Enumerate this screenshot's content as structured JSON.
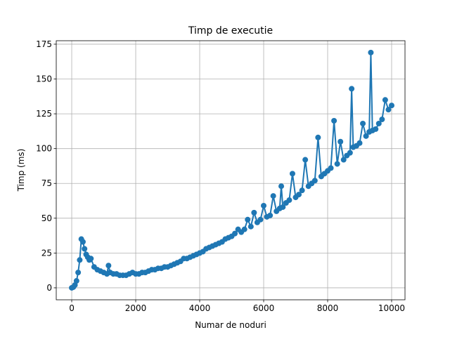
{
  "chart_data": {
    "type": "line",
    "title": "Timp de executie",
    "xlabel": "Numar de noduri",
    "ylabel": "Timp (ms)",
    "x": [
      0,
      50,
      100,
      150,
      200,
      250,
      300,
      350,
      400,
      450,
      500,
      550,
      600,
      700,
      800,
      900,
      1000,
      1100,
      1150,
      1200,
      1300,
      1400,
      1500,
      1600,
      1700,
      1800,
      1900,
      2000,
      2100,
      2200,
      2300,
      2400,
      2500,
      2600,
      2700,
      2800,
      2900,
      3000,
      3100,
      3200,
      3300,
      3400,
      3500,
      3600,
      3700,
      3800,
      3900,
      4000,
      4100,
      4200,
      4300,
      4400,
      4500,
      4600,
      4700,
      4800,
      4900,
      5000,
      5100,
      5200,
      5300,
      5400,
      5500,
      5600,
      5700,
      5800,
      5900,
      6000,
      6100,
      6200,
      6300,
      6400,
      6500,
      6550,
      6600,
      6700,
      6800,
      6900,
      7000,
      7100,
      7200,
      7300,
      7400,
      7500,
      7600,
      7700,
      7800,
      7900,
      8000,
      8100,
      8200,
      8300,
      8400,
      8500,
      8600,
      8700,
      8750,
      8800,
      8900,
      9000,
      9100,
      9200,
      9300,
      9350,
      9400,
      9500,
      9600,
      9700,
      9800,
      9900,
      10000
    ],
    "series": [
      {
        "name": "Timp",
        "color": "#1f77b4",
        "values": [
          0,
          0.5,
          2,
          5,
          11,
          20,
          35,
          33,
          28,
          24,
          22,
          20,
          21,
          15,
          13,
          12,
          11,
          10,
          16,
          11,
          10,
          10,
          9,
          9,
          9,
          10,
          11,
          10,
          10,
          11,
          11,
          12,
          13,
          13,
          14,
          14,
          15,
          15,
          16,
          17,
          18,
          19,
          21,
          21,
          22,
          23,
          24,
          25,
          26,
          28,
          29,
          30,
          31,
          32,
          33,
          35,
          36,
          37,
          39,
          42,
          40,
          42,
          49,
          44,
          54,
          47,
          49,
          59,
          51,
          52,
          66,
          55,
          57,
          73,
          58,
          61,
          63,
          82,
          65,
          67,
          70,
          92,
          73,
          75,
          77,
          108,
          80,
          82,
          84,
          86,
          120,
          89,
          105,
          92,
          95,
          97,
          143,
          101,
          102,
          104,
          118,
          109,
          112,
          169,
          113,
          114,
          118,
          121,
          135,
          128,
          131
        ]
      }
    ],
    "xlim": [
      -484,
      10418
    ],
    "ylim": [
      -8.6,
      177.5
    ],
    "xticks": [
      0,
      2000,
      4000,
      6000,
      8000,
      10000
    ],
    "yticks": [
      0,
      25,
      50,
      75,
      100,
      125,
      150,
      175
    ],
    "grid": true
  }
}
